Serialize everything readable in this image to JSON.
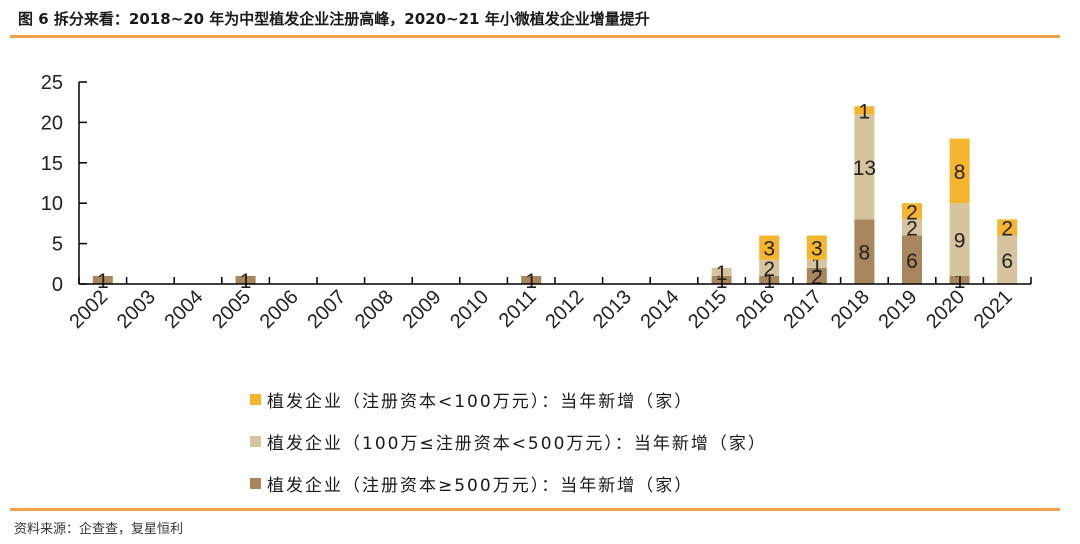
{
  "header": {
    "title": "图 6 拆分来看：2018~20 年为中型植发企业注册高峰，2020~21 年小微植发企业增量提升"
  },
  "footer": {
    "source": "资料来源：企查查，复星恒利"
  },
  "colors": {
    "small": "#f5b52e",
    "medium": "#d5c49e",
    "large": "#a9865e",
    "rule": "#f0a04b",
    "axis": "#000000"
  },
  "legend": [
    {
      "label": "植发企业（注册资本<100万元）：当年新增（家）",
      "color": "#f5b52e"
    },
    {
      "label": "植发企业（100万≤注册资本<500万元）：当年新增（家）",
      "color": "#d5c49e"
    },
    {
      "label": "植发企业（注册资本≥500万元）：当年新增（家）",
      "color": "#a9865e"
    }
  ],
  "chart_data": {
    "type": "bar",
    "stacked": true,
    "title": "图 6 拆分来看：2018~20 年为中型植发企业注册高峰，2020~21 年小微植发企业增量提升",
    "xlabel": "",
    "ylabel": "",
    "ylim": [
      0,
      25
    ],
    "yticks": [
      0,
      5,
      10,
      15,
      20,
      25
    ],
    "grid": false,
    "legend_position": "bottom",
    "categories": [
      "2002",
      "2003",
      "2004",
      "2005",
      "2006",
      "2007",
      "2008",
      "2009",
      "2010",
      "2011",
      "2012",
      "2013",
      "2014",
      "2015",
      "2016",
      "2017",
      "2018",
      "2019",
      "2020",
      "2021"
    ],
    "series": [
      {
        "name": "植发企业（注册资本≥500万元）：当年新增（家）",
        "color": "#a9865e",
        "values": [
          1,
          0,
          0,
          1,
          0,
          0,
          0,
          0,
          0,
          1,
          0,
          0,
          0,
          1,
          1,
          2,
          8,
          6,
          1,
          0
        ]
      },
      {
        "name": "植发企业（100万≤注册资本<500万元）：当年新增（家）",
        "color": "#d5c49e",
        "values": [
          0,
          0,
          0,
          0,
          0,
          0,
          0,
          0,
          0,
          0,
          0,
          0,
          0,
          1,
          2,
          1,
          13,
          2,
          9,
          6
        ]
      },
      {
        "name": "植发企业（注册资本<100万元）：当年新增（家）",
        "color": "#f5b52e",
        "values": [
          0,
          0,
          0,
          0,
          0,
          0,
          0,
          0,
          0,
          0,
          0,
          0,
          0,
          0,
          3,
          3,
          1,
          2,
          8,
          2
        ]
      }
    ]
  }
}
